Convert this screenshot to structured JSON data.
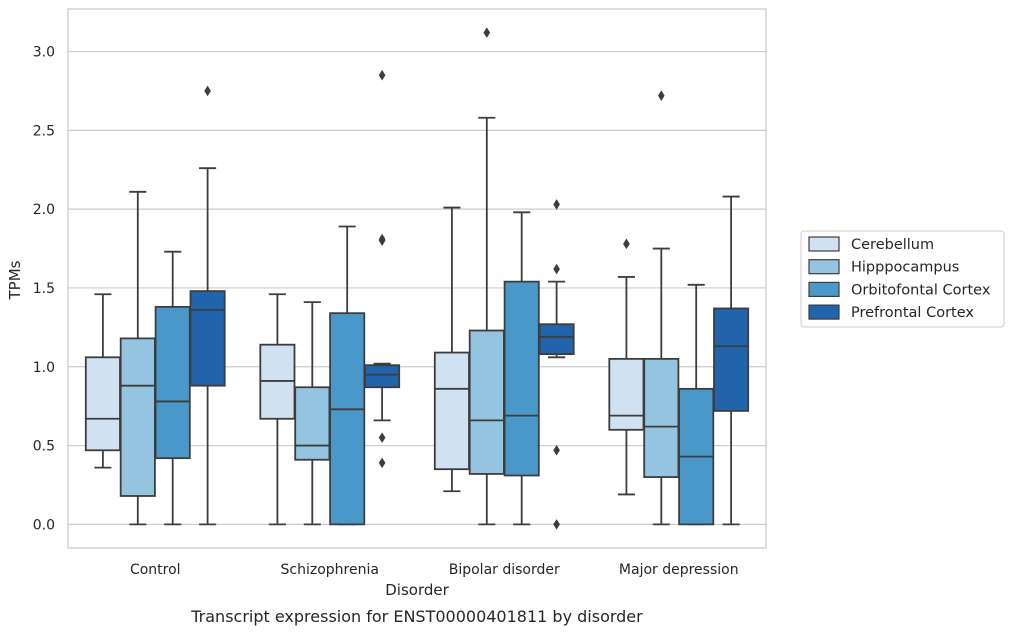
{
  "caption": "Transcript expression for ENST00000401811 by disorder",
  "chart_data": {
    "type": "box",
    "xlabel": "Disorder",
    "ylabel": "TPMs",
    "ylim": [
      -0.15,
      3.27
    ],
    "yticks": [
      "0.0",
      "0.5",
      "1.0",
      "1.5",
      "2.0",
      "2.5",
      "3.0"
    ],
    "grid": true,
    "legend_position": "right",
    "categories": [
      "Control",
      "Schizophrenia",
      "Bipolar disorder",
      "Major depression"
    ],
    "series": [
      {
        "name": "Cerebellum",
        "color": "#d0e1f2",
        "boxes": [
          {
            "whislo": 0.36,
            "q1": 0.47,
            "med": 0.67,
            "q3": 1.06,
            "whishi": 1.46,
            "fliers": []
          },
          {
            "whislo": 0.0,
            "q1": 0.67,
            "med": 0.91,
            "q3": 1.14,
            "whishi": 1.46,
            "fliers": []
          },
          {
            "whislo": 0.21,
            "q1": 0.35,
            "med": 0.86,
            "q3": 1.09,
            "whishi": 2.01,
            "fliers": []
          },
          {
            "whislo": 0.19,
            "q1": 0.6,
            "med": 0.69,
            "q3": 1.05,
            "whishi": 1.57,
            "fliers": [
              1.78
            ]
          }
        ]
      },
      {
        "name": "Hipppocampus",
        "color": "#94c4df",
        "boxes": [
          {
            "whislo": 0.0,
            "q1": 0.18,
            "med": 0.88,
            "q3": 1.18,
            "whishi": 2.11,
            "fliers": []
          },
          {
            "whislo": 0.0,
            "q1": 0.41,
            "med": 0.5,
            "q3": 0.87,
            "whishi": 1.41,
            "fliers": []
          },
          {
            "whislo": 0.0,
            "q1": 0.32,
            "med": 0.66,
            "q3": 1.23,
            "whishi": 2.58,
            "fliers": [
              3.12
            ]
          },
          {
            "whislo": 0.0,
            "q1": 0.3,
            "med": 0.62,
            "q3": 1.05,
            "whishi": 1.75,
            "fliers": [
              2.72
            ]
          }
        ]
      },
      {
        "name": "Orbitofontal Cortex",
        "color": "#4a98c9",
        "boxes": [
          {
            "whislo": 0.0,
            "q1": 0.42,
            "med": 0.78,
            "q3": 1.38,
            "whishi": 1.73,
            "fliers": []
          },
          {
            "whislo": 0.0,
            "q1": 0.0,
            "med": 0.73,
            "q3": 1.34,
            "whishi": 1.89,
            "fliers": []
          },
          {
            "whislo": 0.0,
            "q1": 0.31,
            "med": 0.69,
            "q3": 1.54,
            "whishi": 1.98,
            "fliers": []
          },
          {
            "whislo": 0.0,
            "q1": 0.0,
            "med": 0.43,
            "q3": 0.86,
            "whishi": 1.52,
            "fliers": []
          }
        ]
      },
      {
        "name": "Prefrontal Cortex",
        "color": "#2164ab",
        "boxes": [
          {
            "whislo": 0.0,
            "q1": 0.88,
            "med": 1.36,
            "q3": 1.48,
            "whishi": 2.26,
            "fliers": [
              2.75
            ]
          },
          {
            "whislo": 0.66,
            "q1": 0.87,
            "med": 0.95,
            "q3": 1.01,
            "whishi": 1.02,
            "fliers": [
              0.55,
              0.39,
              1.8,
              1.81,
              2.85
            ]
          },
          {
            "whislo": 1.06,
            "q1": 1.08,
            "med": 1.19,
            "q3": 1.27,
            "whishi": 1.54,
            "fliers": [
              2.03,
              1.62,
              0.47,
              0.0
            ]
          },
          {
            "whislo": 0.0,
            "q1": 0.72,
            "med": 1.13,
            "q3": 1.37,
            "whishi": 2.08,
            "fliers": []
          }
        ]
      }
    ]
  }
}
